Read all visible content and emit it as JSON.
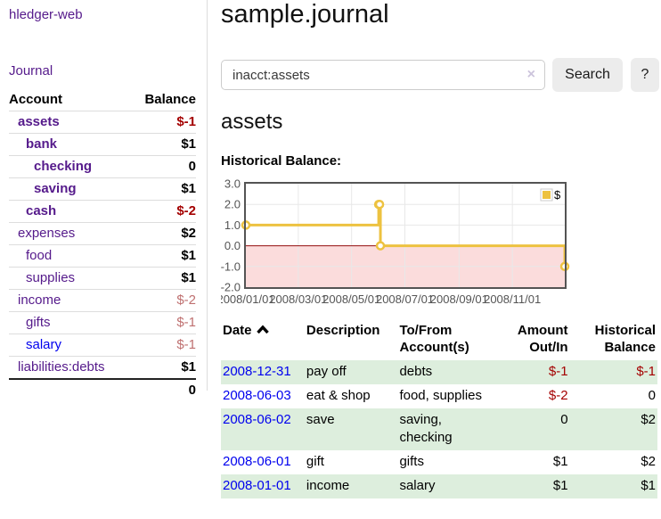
{
  "app": {
    "brand": "hledger-web",
    "nav": {
      "journal": "Journal"
    }
  },
  "sidebar": {
    "account_column": "Account",
    "balance_column": "Balance",
    "accounts": [
      {
        "name": "assets",
        "level": 1,
        "balance": "$-1",
        "bold": true,
        "balance_style": "neg",
        "link_style": "visited"
      },
      {
        "name": "bank",
        "level": 2,
        "balance": "$1",
        "bold": true,
        "balance_style": "normal",
        "link_style": "visited"
      },
      {
        "name": "checking",
        "level": 3,
        "balance": "0",
        "bold": true,
        "balance_style": "normal",
        "link_style": "visited"
      },
      {
        "name": "saving",
        "level": 3,
        "balance": "$1",
        "bold": true,
        "balance_style": "normal",
        "link_style": "visited"
      },
      {
        "name": "cash",
        "level": 2,
        "balance": "$-2",
        "bold": true,
        "balance_style": "neg",
        "link_style": "visited"
      },
      {
        "name": "expenses",
        "level": 1,
        "balance": "$2",
        "bold": false,
        "balance_style": "normal",
        "link_style": "visited"
      },
      {
        "name": "food",
        "level": 2,
        "balance": "$1",
        "bold": false,
        "balance_style": "normal",
        "link_style": "visited"
      },
      {
        "name": "supplies",
        "level": 2,
        "balance": "$1",
        "bold": false,
        "balance_style": "normal",
        "link_style": "visited"
      },
      {
        "name": "income",
        "level": 1,
        "balance": "$-2",
        "bold": false,
        "balance_style": "negsoft",
        "link_style": "visited"
      },
      {
        "name": "gifts",
        "level": 2,
        "balance": "$-1",
        "bold": false,
        "balance_style": "negsoft",
        "link_style": "visited"
      },
      {
        "name": "salary",
        "level": 2,
        "balance": "$-1",
        "bold": false,
        "balance_style": "negsoft",
        "link_style": "unvisited"
      },
      {
        "name": "liabilities:debts",
        "level": 1,
        "balance": "$1",
        "bold": false,
        "balance_style": "normal",
        "link_style": "visited"
      }
    ],
    "total": "0"
  },
  "main": {
    "title": "sample.journal",
    "search": {
      "value": "inacct:assets",
      "clear_icon": "×",
      "search_button": "Search",
      "help_button": "?"
    },
    "account_heading": "assets",
    "chart_label": "Historical Balance:"
  },
  "chart_data": {
    "type": "line",
    "subtype": "step-after",
    "title": "Historical Balance",
    "series": [
      {
        "name": "$",
        "color": "#edc240",
        "points": [
          {
            "x": "2008-01-01",
            "y": 1
          },
          {
            "x": "2008-06-01",
            "y": 2
          },
          {
            "x": "2008-06-02",
            "y": 2
          },
          {
            "x": "2008-06-03",
            "y": 0
          },
          {
            "x": "2008-12-31",
            "y": -1
          }
        ]
      }
    ],
    "x_min": "2008-01-01",
    "x_max": "2008-12-31",
    "y_min": -2.0,
    "y_max": 3.0,
    "y_ticks": [
      3.0,
      2.0,
      1.0,
      0.0,
      -1.0,
      -2.0
    ],
    "x_ticks": [
      "2008/01/01",
      "2008/03/01",
      "2008/05/01",
      "2008/07/01",
      "2008/09/01",
      "2008/11/01"
    ],
    "legend": {
      "position": "top-right",
      "label": "$"
    },
    "grid": true,
    "grid_color": "#e8e8e8",
    "negative_region_color": "#fbdcdc",
    "zero_line_color": "#930d0d",
    "border_color": "#545454",
    "axis_text_color": "#545454"
  },
  "register": {
    "headers": {
      "date": "Date",
      "description": "Description",
      "account_line1": "To/From",
      "account_line2": "Account(s)",
      "amount_line1": "Amount",
      "amount_line2": "Out/In",
      "balance_line1": "Historical",
      "balance_line2": "Balance"
    },
    "sort_ascending_icon": "chevron-up",
    "rows": [
      {
        "date": "2008-12-31",
        "description": "pay off",
        "accounts": "debts",
        "amount": "$-1",
        "amount_negative": true,
        "balance": "$-1",
        "balance_negative": true,
        "highlighted": true
      },
      {
        "date": "2008-06-03",
        "description": "eat & shop",
        "accounts": "food, supplies",
        "amount": "$-2",
        "amount_negative": true,
        "balance": "0",
        "balance_negative": false,
        "highlighted": false
      },
      {
        "date": "2008-06-02",
        "description": "save",
        "accounts": "saving, checking",
        "amount": "0",
        "amount_negative": false,
        "balance": "$2",
        "balance_negative": false,
        "highlighted": true
      },
      {
        "date": "2008-06-01",
        "description": "gift",
        "accounts": "gifts",
        "amount": "$1",
        "amount_negative": false,
        "balance": "$2",
        "balance_negative": false,
        "highlighted": false
      },
      {
        "date": "2008-01-01",
        "description": "income",
        "accounts": "salary",
        "amount": "$1",
        "amount_negative": false,
        "balance": "$1",
        "balance_negative": false,
        "highlighted": true
      }
    ]
  },
  "colors": {
    "link_purple": "#551a8b",
    "link_blue": "#0000ee",
    "negative_strong": "#a40000",
    "negative_soft": "#bf7070",
    "row_highlight_green": "#ddeedd",
    "series_gold": "#edc240"
  }
}
